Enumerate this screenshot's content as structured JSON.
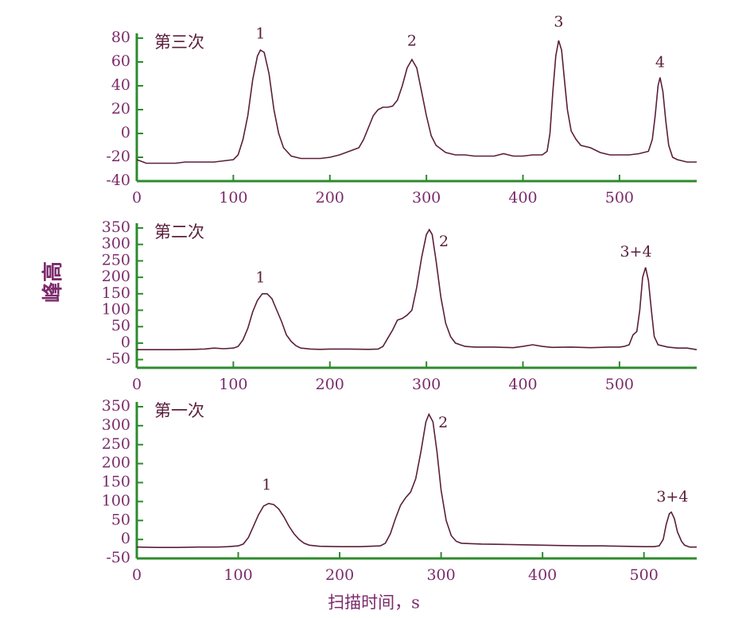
{
  "ylabel": "峰高",
  "xlabel": "扫描时间，s",
  "chart_data": [
    {
      "type": "line",
      "label": "第三次",
      "color": "#5a1f3a",
      "x": [
        0,
        10,
        20,
        30,
        40,
        50,
        60,
        70,
        80,
        90,
        100,
        105,
        110,
        115,
        120,
        125,
        128,
        132,
        137,
        142,
        147,
        152,
        160,
        170,
        180,
        190,
        200,
        210,
        220,
        230,
        235,
        240,
        245,
        250,
        255,
        260,
        265,
        270,
        275,
        280,
        285,
        290,
        295,
        300,
        305,
        310,
        320,
        330,
        340,
        350,
        360,
        370,
        380,
        390,
        400,
        410,
        420,
        425,
        428,
        431,
        434,
        437,
        440,
        443,
        446,
        450,
        455,
        460,
        470,
        480,
        490,
        500,
        510,
        520,
        530,
        534,
        537,
        540,
        542,
        545,
        548,
        551,
        555,
        560,
        570,
        580
      ],
      "values": [
        -22,
        -25,
        -25,
        -25,
        -25,
        -24,
        -24,
        -24,
        -24,
        -23,
        -22,
        -18,
        -5,
        15,
        45,
        65,
        70,
        68,
        50,
        20,
        0,
        -12,
        -19,
        -21,
        -21,
        -21,
        -20,
        -18,
        -15,
        -12,
        -5,
        5,
        15,
        20,
        22,
        22,
        23,
        28,
        40,
        55,
        62,
        55,
        35,
        15,
        -2,
        -10,
        -16,
        -18,
        -18,
        -19,
        -19,
        -19,
        -17,
        -19,
        -19,
        -18,
        -18,
        -15,
        0,
        35,
        65,
        78,
        70,
        45,
        20,
        2,
        -5,
        -10,
        -12,
        -16,
        -18,
        -18,
        -18,
        -17,
        -15,
        -5,
        15,
        40,
        47,
        35,
        10,
        -10,
        -20,
        -22,
        -24,
        -24
      ],
      "xlim": [
        0,
        580
      ],
      "ylim": [
        -40,
        80
      ],
      "xticks": [
        0,
        100,
        200,
        300,
        400,
        500
      ],
      "yticks": [
        -40,
        -20,
        0,
        20,
        40,
        60,
        80
      ],
      "annotations": [
        {
          "text": "1",
          "x": 128,
          "y": 83
        },
        {
          "text": "2",
          "x": 285,
          "y": 77
        },
        {
          "text": "3",
          "x": 437,
          "y": 93
        },
        {
          "text": "4",
          "x": 542,
          "y": 59
        }
      ]
    },
    {
      "type": "line",
      "label": "第二次",
      "color": "#5a1f3a",
      "x": [
        0,
        20,
        40,
        60,
        70,
        80,
        90,
        100,
        105,
        110,
        115,
        120,
        125,
        130,
        135,
        140,
        145,
        150,
        155,
        160,
        165,
        170,
        180,
        190,
        200,
        220,
        240,
        250,
        255,
        260,
        265,
        270,
        275,
        280,
        285,
        290,
        295,
        300,
        303,
        306,
        310,
        315,
        320,
        325,
        330,
        340,
        350,
        370,
        390,
        400,
        410,
        420,
        430,
        450,
        470,
        490,
        500,
        505,
        510,
        514,
        518,
        521,
        524,
        527,
        530,
        533,
        536,
        540,
        550,
        560,
        570,
        580
      ],
      "values": [
        -20,
        -20,
        -20,
        -19,
        -18,
        -15,
        -17,
        -15,
        -10,
        10,
        45,
        95,
        130,
        150,
        150,
        135,
        100,
        65,
        25,
        5,
        -8,
        -15,
        -18,
        -19,
        -18,
        -18,
        -19,
        -18,
        -10,
        15,
        40,
        70,
        75,
        85,
        100,
        170,
        260,
        330,
        345,
        330,
        250,
        140,
        60,
        20,
        0,
        -10,
        -12,
        -12,
        -14,
        -10,
        -5,
        -10,
        -13,
        -12,
        -14,
        -12,
        -12,
        -10,
        -5,
        25,
        35,
        100,
        200,
        230,
        190,
        100,
        20,
        -5,
        -12,
        -15,
        -15,
        -20
      ],
      "xlim": [
        0,
        580
      ],
      "ylim": [
        -75,
        350
      ],
      "xticks": [
        0,
        100,
        200,
        300,
        400,
        500
      ],
      "yticks": [
        -50,
        0,
        50,
        100,
        150,
        200,
        250,
        300,
        350
      ],
      "annotations": [
        {
          "text": "1",
          "x": 128,
          "y": 197
        },
        {
          "text": "2",
          "x": 318,
          "y": 306
        },
        {
          "text": "3+4",
          "x": 517,
          "y": 275
        }
      ]
    },
    {
      "type": "line",
      "label": "第一次",
      "color": "#5a1f3a",
      "x": [
        0,
        20,
        40,
        60,
        80,
        90,
        100,
        105,
        110,
        115,
        120,
        125,
        130,
        135,
        140,
        145,
        150,
        155,
        160,
        165,
        170,
        180,
        200,
        220,
        240,
        245,
        250,
        255,
        260,
        265,
        270,
        275,
        280,
        285,
        288,
        292,
        296,
        300,
        305,
        310,
        315,
        320,
        340,
        360,
        380,
        400,
        420,
        440,
        460,
        480,
        500,
        510,
        515,
        519,
        522,
        525,
        527,
        530,
        533,
        537,
        540,
        545,
        552
      ],
      "values": [
        -20,
        -21,
        -21,
        -20,
        -20,
        -19,
        -17,
        -12,
        5,
        35,
        65,
        88,
        95,
        92,
        80,
        60,
        35,
        15,
        0,
        -10,
        -15,
        -18,
        -19,
        -19,
        -17,
        -10,
        15,
        55,
        90,
        110,
        125,
        160,
        230,
        310,
        330,
        310,
        230,
        130,
        50,
        10,
        -5,
        -10,
        -12,
        -13,
        -14,
        -15,
        -16,
        -17,
        -17,
        -18,
        -19,
        -19,
        -17,
        0,
        40,
        68,
        72,
        55,
        20,
        -5,
        -15,
        -20,
        -20
      ],
      "xlim": [
        0,
        552
      ],
      "ylim": [
        -50,
        350
      ],
      "xticks": [
        0,
        100,
        200,
        300,
        400,
        500
      ],
      "yticks": [
        -50,
        0,
        50,
        100,
        150,
        200,
        250,
        300,
        350
      ],
      "annotations": [
        {
          "text": "1",
          "x": 128,
          "y": 142
        },
        {
          "text": "2",
          "x": 302,
          "y": 306
        },
        {
          "text": "3+4",
          "x": 528,
          "y": 110
        }
      ]
    }
  ]
}
